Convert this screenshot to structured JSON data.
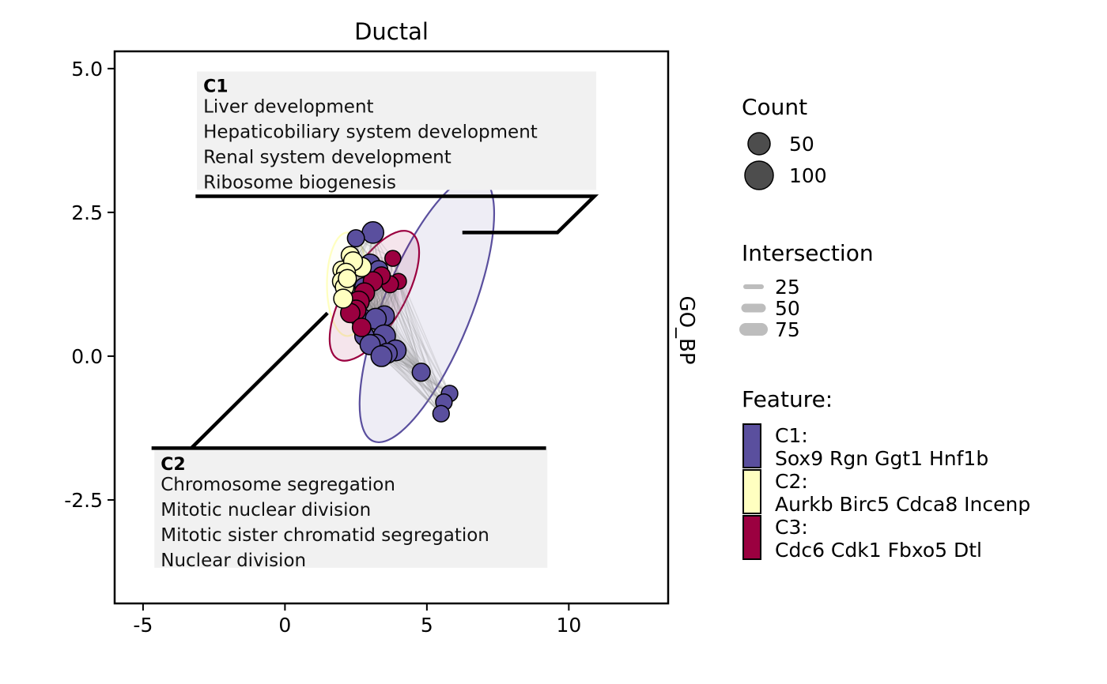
{
  "chart_data": {
    "type": "scatter",
    "title": "Ductal",
    "facet_label": "GO_BP",
    "xlim": [
      -6,
      13.5
    ],
    "ylim": [
      -4.3,
      5.3
    ],
    "x_ticks": [
      -5,
      0,
      5,
      10
    ],
    "y_ticks": [
      -2.5,
      0.0,
      2.5,
      5.0
    ],
    "x_tick_labels": [
      "-5",
      "0",
      "5",
      "10"
    ],
    "y_tick_labels": [
      "-2.5",
      "0.0",
      "2.5",
      "5.0"
    ],
    "grid": false,
    "legend_position": "right",
    "colors": {
      "C1": "#5a4f9e",
      "C2": "#ffffc0",
      "C3": "#9b0040"
    },
    "series": [
      {
        "name": "C1",
        "color": "#5a4f9e",
        "points": [
          {
            "x": 3.1,
            "y": 2.15,
            "count": 90
          },
          {
            "x": 2.5,
            "y": 2.05,
            "count": 35
          },
          {
            "x": 3.0,
            "y": 1.6,
            "count": 70
          },
          {
            "x": 3.3,
            "y": 1.5,
            "count": 50
          },
          {
            "x": 2.8,
            "y": 1.2,
            "count": 60
          },
          {
            "x": 3.5,
            "y": 0.7,
            "count": 70
          },
          {
            "x": 2.7,
            "y": 0.65,
            "count": 80
          },
          {
            "x": 3.2,
            "y": 0.65,
            "count": 80
          },
          {
            "x": 3.5,
            "y": 0.35,
            "count": 100
          },
          {
            "x": 2.8,
            "y": 0.35,
            "count": 60
          },
          {
            "x": 3.2,
            "y": 0.2,
            "count": 80
          },
          {
            "x": 3.0,
            "y": 0.2,
            "count": 70
          },
          {
            "x": 3.9,
            "y": 0.1,
            "count": 80
          },
          {
            "x": 3.6,
            "y": 0.05,
            "count": 70
          },
          {
            "x": 3.4,
            "y": 0.0,
            "count": 80
          },
          {
            "x": 4.8,
            "y": -0.28,
            "count": 45
          },
          {
            "x": 5.8,
            "y": -0.65,
            "count": 30
          },
          {
            "x": 5.6,
            "y": -0.8,
            "count": 30
          },
          {
            "x": 5.5,
            "y": -1.0,
            "count": 30
          }
        ]
      },
      {
        "name": "C2",
        "color": "#ffffc0",
        "points": [
          {
            "x": 2.3,
            "y": 1.75,
            "count": 45
          },
          {
            "x": 2.0,
            "y": 1.5,
            "count": 40
          },
          {
            "x": 2.7,
            "y": 1.55,
            "count": 60
          },
          {
            "x": 2.4,
            "y": 1.65,
            "count": 55
          },
          {
            "x": 2.15,
            "y": 1.45,
            "count": 55
          },
          {
            "x": 2.0,
            "y": 1.3,
            "count": 50
          },
          {
            "x": 2.1,
            "y": 1.2,
            "count": 50
          },
          {
            "x": 2.05,
            "y": 1.0,
            "count": 55
          },
          {
            "x": 2.2,
            "y": 1.35,
            "count": 45
          }
        ]
      },
      {
        "name": "C3",
        "color": "#9b0040",
        "points": [
          {
            "x": 3.8,
            "y": 1.7,
            "count": 25
          },
          {
            "x": 4.0,
            "y": 1.3,
            "count": 25
          },
          {
            "x": 3.7,
            "y": 1.25,
            "count": 35
          },
          {
            "x": 3.4,
            "y": 1.4,
            "count": 40
          },
          {
            "x": 3.1,
            "y": 1.3,
            "count": 60
          },
          {
            "x": 2.8,
            "y": 1.1,
            "count": 70
          },
          {
            "x": 2.6,
            "y": 0.95,
            "count": 80
          },
          {
            "x": 2.5,
            "y": 0.8,
            "count": 70
          },
          {
            "x": 2.3,
            "y": 0.75,
            "count": 60
          },
          {
            "x": 2.7,
            "y": 0.5,
            "count": 50
          }
        ]
      }
    ],
    "ellipses": [
      {
        "group": "C1",
        "color": "#5a4f9e",
        "cx": 5.0,
        "cy": 0.82,
        "rx": 1.55,
        "ry": 2.48,
        "angle": 22
      },
      {
        "group": "C2",
        "color": "#ffffc0",
        "cx": 2.2,
        "cy": 1.25,
        "rx": 0.72,
        "ry": 0.9,
        "angle": 0
      },
      {
        "group": "C3",
        "color": "#9b0040",
        "cx": 3.15,
        "cy": 1.05,
        "rx": 1.05,
        "ry": 1.27,
        "angle": 30
      }
    ],
    "annotations": [
      {
        "id": "C1",
        "title": "C1",
        "terms": [
          "Liver development",
          "Hepaticobiliary system development",
          "Renal system development",
          "Ribosome biogenesis"
        ],
        "box": {
          "x": -3.1,
          "y": 4.95
        },
        "leader": [
          [
            -3.15,
            2.78
          ],
          [
            10.9,
            2.78
          ],
          [
            9.6,
            2.15
          ],
          [
            6.25,
            2.15
          ]
        ]
      },
      {
        "id": "C2",
        "title": "C2",
        "terms": [
          "Chromosome segregation",
          "Mitotic nuclear division",
          "Mitotic sister chromatid segregation",
          "Nuclear division"
        ],
        "box": {
          "x": -4.6,
          "y": -1.62
        },
        "leader": [
          [
            9.2,
            -1.6
          ],
          [
            -4.7,
            -1.6
          ],
          [
            -3.3,
            -1.6
          ],
          [
            1.5,
            0.75
          ]
        ]
      }
    ],
    "legend": {
      "count": {
        "title": "Count",
        "entries": [
          {
            "label": "50",
            "value": 50
          },
          {
            "label": "100",
            "value": 100
          }
        ]
      },
      "intersection": {
        "title": "Intersection",
        "entries": [
          {
            "label": "25",
            "value": 25
          },
          {
            "label": "50",
            "value": 50
          },
          {
            "label": "75",
            "value": 75
          }
        ]
      },
      "feature": {
        "title": "Feature:",
        "entries": [
          {
            "key": "C1:",
            "genes": "Sox9 Rgn Ggt1 Hnf1b",
            "color": "#5a4f9e"
          },
          {
            "key": "C2:",
            "genes": "Aurkb Birc5 Cdca8 Incenp",
            "color": "#ffffc0"
          },
          {
            "key": "C3:",
            "genes": "Cdc6 Cdk1 Fbxo5 Dtl",
            "color": "#9b0040"
          }
        ]
      }
    }
  }
}
